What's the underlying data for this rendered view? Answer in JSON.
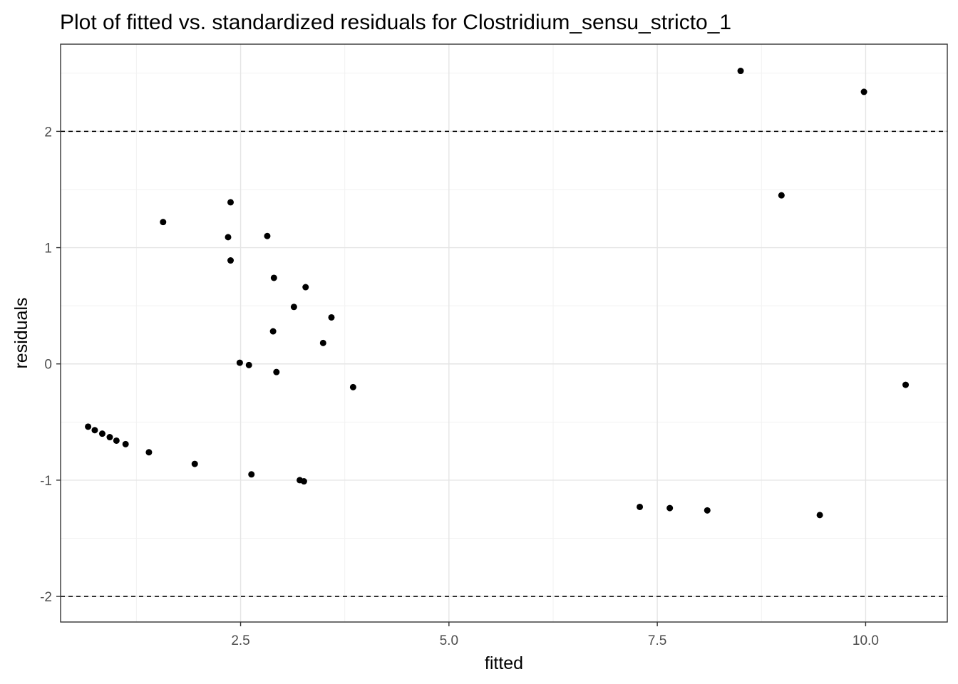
{
  "chart_data": {
    "type": "scatter",
    "title": "Plot of fitted vs. standardized residuals for Clostridium_sensu_stricto_1",
    "xlabel": "fitted",
    "ylabel": "residuals",
    "xlim": [
      0.34,
      10.98
    ],
    "ylim": [
      -2.22,
      2.75
    ],
    "x_ticks": [
      2.5,
      5.0,
      7.5,
      10.0
    ],
    "x_tick_labels": [
      "2.5",
      "5.0",
      "7.5",
      "10.0"
    ],
    "y_ticks": [
      -2,
      -1,
      0,
      1,
      2
    ],
    "y_tick_labels": [
      "-2",
      "-1",
      "0",
      "1",
      "2"
    ],
    "x_minor_ticks": [
      1.25,
      3.75,
      6.25,
      8.75
    ],
    "y_minor_ticks": [
      -1.5,
      -0.5,
      0.5,
      1.5,
      2.5
    ],
    "grid": true,
    "reference_lines": [
      2,
      -2
    ],
    "point_color": "#000000",
    "points": [
      {
        "x": 0.67,
        "y": -0.54
      },
      {
        "x": 0.75,
        "y": -0.57
      },
      {
        "x": 0.84,
        "y": -0.6
      },
      {
        "x": 0.93,
        "y": -0.63
      },
      {
        "x": 1.01,
        "y": -0.66
      },
      {
        "x": 1.12,
        "y": -0.69
      },
      {
        "x": 1.4,
        "y": -0.76
      },
      {
        "x": 1.57,
        "y": 1.22
      },
      {
        "x": 1.95,
        "y": -0.86
      },
      {
        "x": 2.35,
        "y": 1.09
      },
      {
        "x": 2.38,
        "y": 1.39
      },
      {
        "x": 2.38,
        "y": 0.89
      },
      {
        "x": 2.49,
        "y": 0.01
      },
      {
        "x": 2.6,
        "y": -0.01
      },
      {
        "x": 2.63,
        "y": -0.95
      },
      {
        "x": 2.82,
        "y": 1.1
      },
      {
        "x": 2.89,
        "y": 0.28
      },
      {
        "x": 2.9,
        "y": 0.74
      },
      {
        "x": 2.93,
        "y": -0.07
      },
      {
        "x": 3.14,
        "y": 0.49
      },
      {
        "x": 3.21,
        "y": -1.0
      },
      {
        "x": 3.26,
        "y": -1.01
      },
      {
        "x": 3.28,
        "y": 0.66
      },
      {
        "x": 3.49,
        "y": 0.18
      },
      {
        "x": 3.59,
        "y": 0.4
      },
      {
        "x": 3.85,
        "y": -0.2
      },
      {
        "x": 7.29,
        "y": -1.23
      },
      {
        "x": 7.65,
        "y": -1.24
      },
      {
        "x": 8.1,
        "y": -1.26
      },
      {
        "x": 8.5,
        "y": 2.52
      },
      {
        "x": 8.99,
        "y": 1.45
      },
      {
        "x": 9.45,
        "y": -1.3
      },
      {
        "x": 9.98,
        "y": 2.34
      },
      {
        "x": 10.48,
        "y": -0.18
      }
    ]
  }
}
